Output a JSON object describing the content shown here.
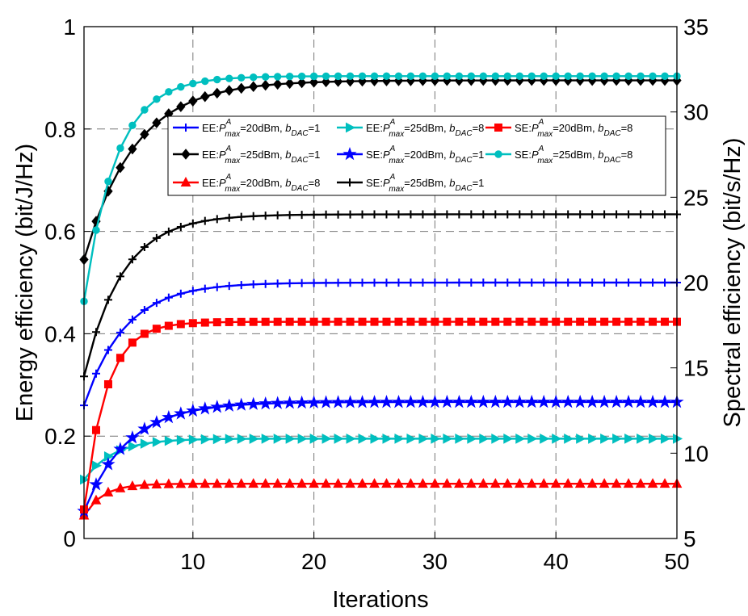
{
  "chart_data": {
    "type": "line",
    "xlabel": "Iterations",
    "ylabel_left": "Energy efficiency (bit/J/Hz)",
    "ylabel_right": "Spectral efficiency (bit/s/Hz)",
    "xlim": [
      1,
      50
    ],
    "ylim_left": [
      0,
      1
    ],
    "ylim_right": [
      5,
      35
    ],
    "x_ticks": [
      10,
      20,
      30,
      40,
      50
    ],
    "y_ticks_left": [
      0,
      0.2,
      0.4,
      0.6,
      0.8,
      1
    ],
    "y_ticks_right": [
      5,
      10,
      15,
      20,
      25,
      30,
      35
    ],
    "grid": true,
    "legend_position": "upper-right (inside, 3 columns)",
    "series": [
      {
        "id": "ee20b1",
        "label": {
          "pre": "EE:",
          "P": "P",
          "Psup": "A",
          "Psub": "max",
          "post": "=20dBm, ",
          "b": "b",
          "bsub": "DAC",
          "bval": "=1"
        },
        "axis": "left",
        "color": "#0000FF",
        "marker": "plus",
        "start": 0.26,
        "end": 0.5,
        "rate": 0.3
      },
      {
        "id": "ee25b1",
        "label": {
          "pre": "EE:",
          "P": "P",
          "Psup": "A",
          "Psub": "max",
          "post": "=25dBm, ",
          "b": "b",
          "bsub": "DAC",
          "bval": "=1"
        },
        "axis": "left",
        "color": "#000000",
        "marker": "diamond",
        "start": 0.545,
        "end": 0.895,
        "rate": 0.24
      },
      {
        "id": "ee20b8",
        "label": {
          "pre": "EE:",
          "P": "P",
          "Psup": "A",
          "Psub": "max",
          "post": "=20dBm, ",
          "b": "b",
          "bsub": "DAC",
          "bval": "=8"
        },
        "axis": "left",
        "color": "#FF0000",
        "marker": "triangle-up",
        "start": 0.045,
        "end": 0.107,
        "rate": 0.65
      },
      {
        "id": "ee25b8",
        "label": {
          "pre": "EE:",
          "P": "P",
          "Psup": "A",
          "Psub": "max",
          "post": "=25dBm, ",
          "b": "b",
          "bsub": "DAC",
          "bval": "=8"
        },
        "axis": "left",
        "color": "#00BFBF",
        "marker": "triangle-right",
        "start": 0.115,
        "end": 0.195,
        "rate": 0.42
      },
      {
        "id": "se20b1",
        "label": {
          "pre": "SE:",
          "P": "P",
          "Psup": "A",
          "Psub": "max",
          "post": "=20dBm, ",
          "b": "b",
          "bsub": "DAC",
          "bval": "=1"
        },
        "axis": "right",
        "color": "#0000FF",
        "marker": "pentagram",
        "start": 6.6,
        "end": 13.0,
        "rate": 0.28
      },
      {
        "id": "se25b1",
        "label": {
          "pre": "SE:",
          "P": "P",
          "Psup": "A",
          "Psub": "max",
          "post": "=25dBm, ",
          "b": "b",
          "bsub": "DAC",
          "bval": "=1"
        },
        "axis": "right",
        "color": "#000000",
        "marker": "plus",
        "start": 14.5,
        "end": 24.0,
        "rate": 0.32
      },
      {
        "id": "se20b8",
        "label": {
          "pre": "SE:",
          "P": "P",
          "Psup": "A",
          "Psub": "max",
          "post": "=20dBm, ",
          "b": "b",
          "bsub": "DAC",
          "bval": "=8"
        },
        "axis": "right",
        "color": "#FF0000",
        "marker": "square",
        "start": 6.7,
        "end": 17.7,
        "rate": 0.55
      },
      {
        "id": "se25b8",
        "label": {
          "pre": "SE:",
          "P": "P",
          "Psup": "A",
          "Psub": "max",
          "post": "=25dBm, ",
          "b": "b",
          "bsub": "DAC",
          "bval": "=8"
        },
        "axis": "right",
        "color": "#00BFBF",
        "marker": "circle",
        "start": 18.9,
        "end": 32.1,
        "rate": 0.38
      }
    ],
    "legend_order": [
      "ee20b1",
      "ee25b8",
      "se20b8",
      "ee25b1",
      "se20b1",
      "se25b8",
      "ee20b8",
      "se25b1"
    ],
    "n_points": 50
  }
}
